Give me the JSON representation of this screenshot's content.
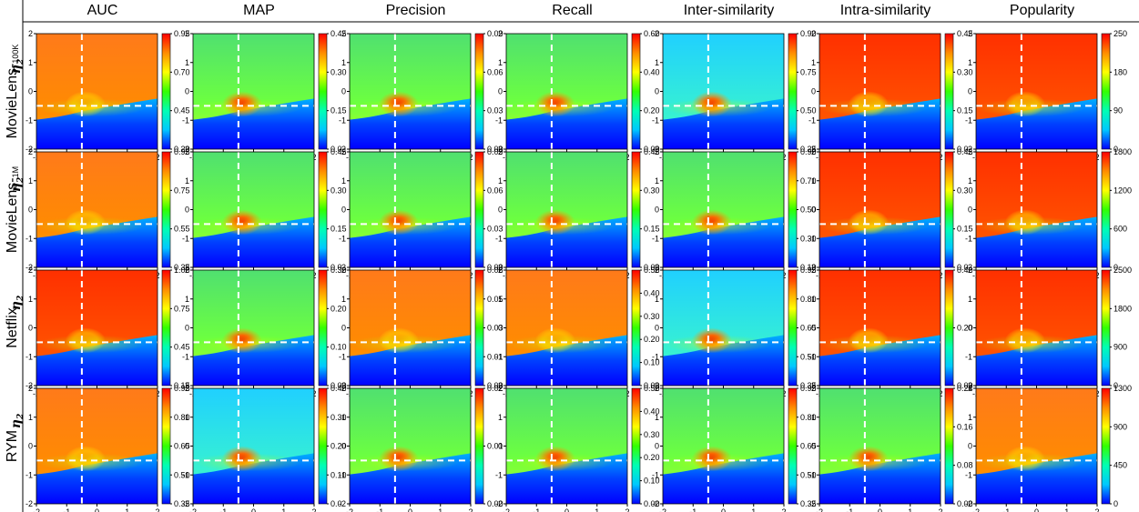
{
  "columns": [
    "AUC",
    "MAP",
    "Precision",
    "Recall",
    "Inter-similarity",
    "Intra-similarity",
    "Popularity"
  ],
  "rows": [
    "MovieLens-100K",
    "MovieLens-1M",
    "Netflix",
    "RYM"
  ],
  "row_label_main": {
    "MovieLens-100K": "MovieLens-",
    "MovieLens-1M": "MovieLens-",
    "Netflix": "Netflix",
    "RYM": "RYM"
  },
  "row_label_sub": {
    "MovieLens-100K": "100K",
    "MovieLens-1M": "1M",
    "Netflix": "",
    "RYM": ""
  },
  "x_label": "η",
  "x_label_sub": "1",
  "y_label": "η",
  "y_label_sub": "2",
  "colormap": [
    "#0000ff",
    "#00c8ff",
    "#00ffb4",
    "#32ff00",
    "#ffff00",
    "#ff8c00",
    "#ff0000"
  ],
  "chart_data": {
    "type": "heatmap",
    "grid": [
      4,
      7
    ],
    "x": {
      "range": [
        -2,
        2
      ],
      "ticks": [
        "-2",
        "-1",
        "0",
        "1",
        "2"
      ]
    },
    "y": {
      "range": [
        -2,
        2
      ],
      "ticks": [
        "2",
        "1",
        "0",
        "-1",
        "-2"
      ]
    },
    "optimal_point": {
      "eta1": -0.5,
      "eta2": -0.5
    },
    "colorbar_ticks": [
      [
        [
          "0.95",
          "0.70",
          "0.45",
          "0.20"
        ],
        [
          "0.45",
          "0.30",
          "0.15",
          "0.0"
        ],
        [
          "0.09",
          "0.06",
          "0.03",
          "0.00"
        ],
        [
          "0.60",
          "0.40",
          "0.20",
          "0.00"
        ],
        [
          "0.90",
          "0.75",
          "0.50",
          "0.25"
        ],
        [
          "0.45",
          "0.30",
          "0.15",
          "0.0"
        ],
        [
          "250",
          "180",
          "90",
          "0"
        ]
      ],
      [
        [
          "0.95",
          "0.75",
          "0.55",
          "0.35"
        ],
        [
          "0.45",
          "0.30",
          "0.15",
          "0.0"
        ],
        [
          "0.09",
          "0.06",
          "0.03",
          "0.00"
        ],
        [
          "0.45",
          "0.30",
          "0.15",
          "0.00"
        ],
        [
          "0.90",
          "0.70",
          "0.50",
          "0.30",
          "0.10"
        ],
        [
          "0.45",
          "0.30",
          "0.15",
          "0.0"
        ],
        [
          "1800",
          "1200",
          "600",
          "0"
        ]
      ],
      [
        [
          "1.00",
          "0.75",
          "0.45",
          "0.15"
        ],
        [
          "0.30",
          "0.20",
          "0.10",
          "0.00"
        ],
        [
          "0.06",
          "0.05",
          "0.03",
          "0.01",
          "0.00"
        ],
        [
          "0.50",
          "0.40",
          "0.30",
          "0.20",
          "0.10",
          "0.00"
        ],
        [
          "0.95",
          "0.80",
          "0.65",
          "0.50",
          "0.35"
        ],
        [
          "0.40",
          "0.20",
          "0.00"
        ],
        [
          "2500",
          "1800",
          "900",
          "0"
        ]
      ],
      [
        [
          "0.95",
          "0.80",
          "0.65",
          "0.50",
          "0.35"
        ],
        [
          "0.40",
          "0.30",
          "0.20",
          "0.10",
          "0.0"
        ],
        [
          "0.02",
          "0.01",
          "0.00"
        ],
        [
          "0.50",
          "0.40",
          "0.30",
          "0.20",
          "0.10",
          "0.00"
        ],
        [
          "0.95",
          "0.80",
          "0.65",
          "0.50",
          "0.35"
        ],
        [
          "0.24",
          "0.16",
          "0.08",
          "0.00"
        ],
        [
          "1300",
          "900",
          "450",
          "0"
        ]
      ]
    ]
  }
}
